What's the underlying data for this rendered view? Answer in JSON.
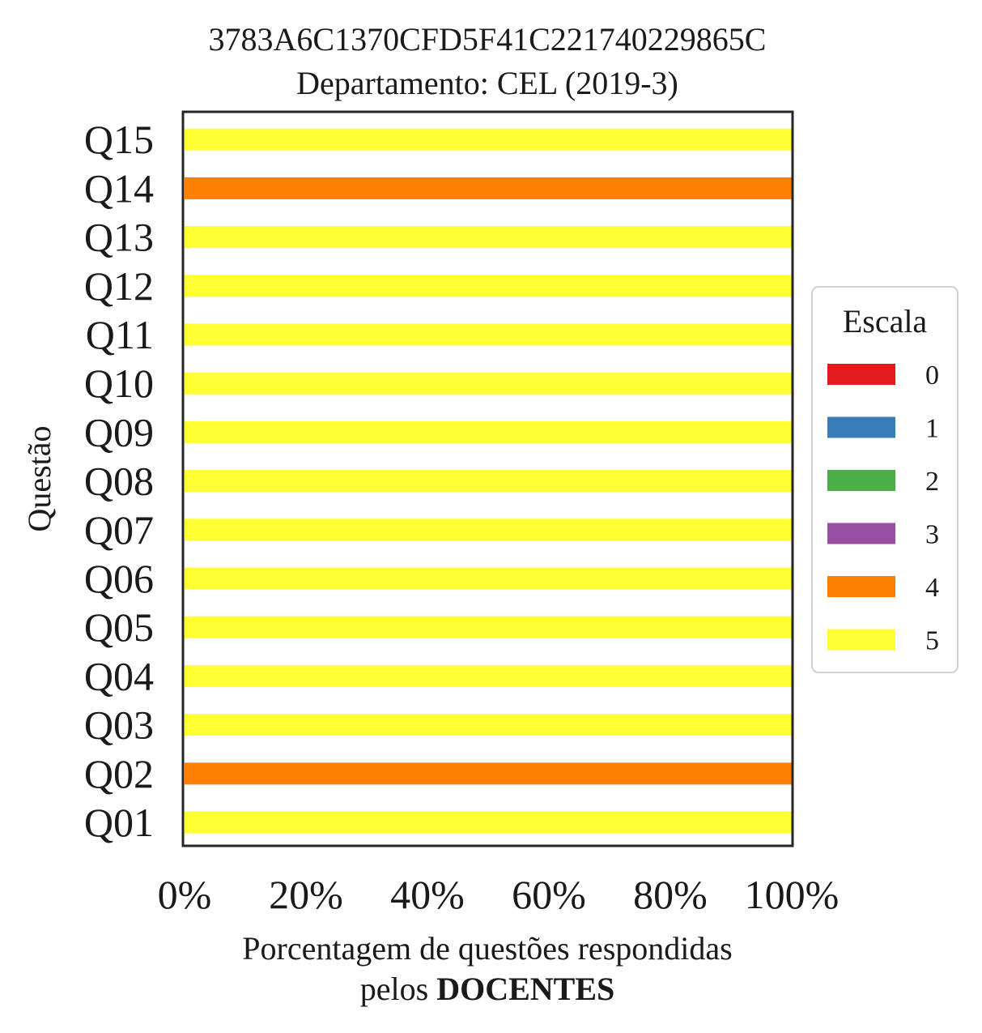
{
  "chart_data": {
    "type": "bar",
    "orientation": "horizontal",
    "stacked": true,
    "title": "3783A6C1370CFD5F41C221740229865C",
    "subtitle": "Departamento: CEL (2019-3)",
    "xlabel_line1": "Porcentagem de questões respondidas",
    "xlabel_line2_prefix": "pelos ",
    "xlabel_line2_bold": "DOCENTES",
    "ylabel": "Questão",
    "xlim": [
      0,
      100
    ],
    "x_ticks": [
      0,
      20,
      40,
      60,
      80,
      100
    ],
    "x_tick_labels": [
      "0%",
      "20%",
      "40%",
      "60%",
      "80%",
      "100%"
    ],
    "categories": [
      "Q01",
      "Q02",
      "Q03",
      "Q04",
      "Q05",
      "Q06",
      "Q07",
      "Q08",
      "Q09",
      "Q10",
      "Q11",
      "Q12",
      "Q13",
      "Q14",
      "Q15"
    ],
    "series": [
      {
        "name": "0",
        "color": "#e41a1c",
        "values": [
          0,
          0,
          0,
          0,
          0,
          0,
          0,
          0,
          0,
          0,
          0,
          0,
          0,
          0,
          0
        ]
      },
      {
        "name": "1",
        "color": "#377eb8",
        "values": [
          0,
          0,
          0,
          0,
          0,
          0,
          0,
          0,
          0,
          0,
          0,
          0,
          0,
          0,
          0
        ]
      },
      {
        "name": "2",
        "color": "#4daf4a",
        "values": [
          0,
          0,
          0,
          0,
          0,
          0,
          0,
          0,
          0,
          0,
          0,
          0,
          0,
          0,
          0
        ]
      },
      {
        "name": "3",
        "color": "#984ea3",
        "values": [
          0,
          0,
          0,
          0,
          0,
          0,
          0,
          0,
          0,
          0,
          0,
          0,
          0,
          0,
          0
        ]
      },
      {
        "name": "4",
        "color": "#ff7f00",
        "values": [
          0,
          100,
          0,
          0,
          0,
          0,
          0,
          0,
          0,
          0,
          0,
          0,
          0,
          100,
          0
        ]
      },
      {
        "name": "5",
        "color": "#ffff33",
        "values": [
          100,
          0,
          100,
          100,
          100,
          100,
          100,
          100,
          100,
          100,
          100,
          100,
          100,
          0,
          100
        ]
      }
    ],
    "legend": {
      "title": "Escala",
      "placement": "center-right"
    },
    "grid": false
  }
}
